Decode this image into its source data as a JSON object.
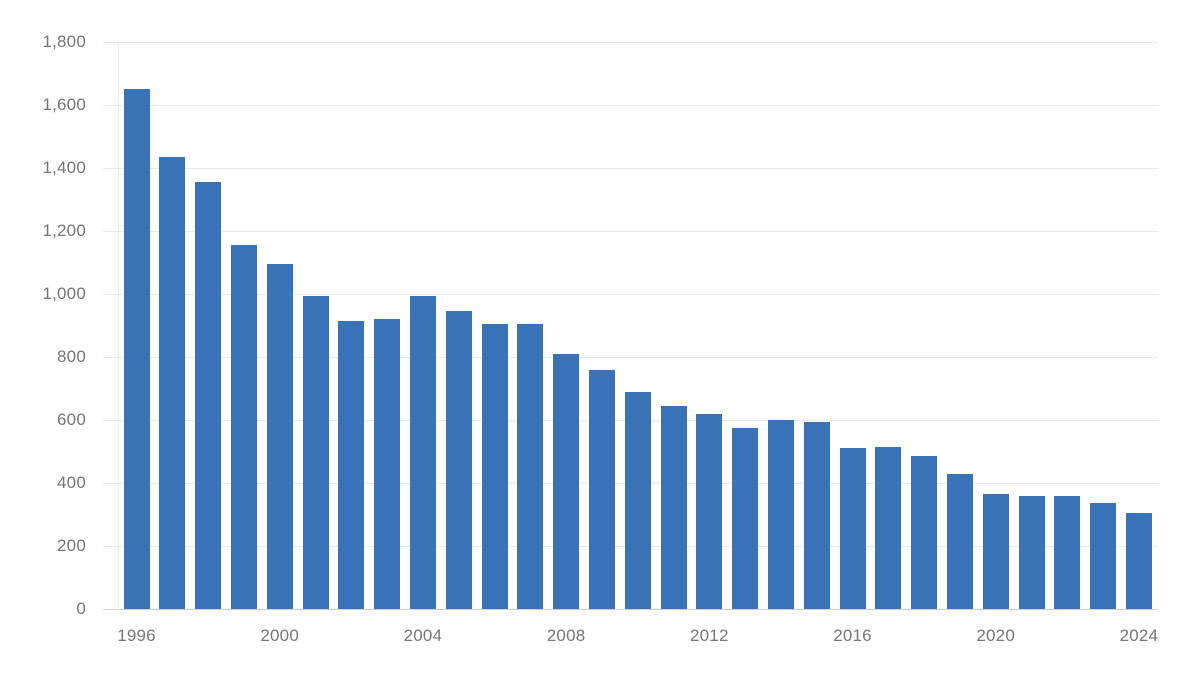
{
  "chart_data": {
    "type": "bar",
    "title": "",
    "xlabel": "",
    "ylabel": "",
    "categories": [
      1996,
      1997,
      1998,
      1999,
      2000,
      2001,
      2002,
      2003,
      2004,
      2005,
      2006,
      2007,
      2008,
      2009,
      2010,
      2011,
      2012,
      2013,
      2014,
      2015,
      2016,
      2017,
      2018,
      2019,
      2020,
      2021,
      2022,
      2023,
      2024
    ],
    "values": [
      1650,
      1435,
      1355,
      1155,
      1095,
      995,
      915,
      920,
      995,
      945,
      905,
      905,
      810,
      760,
      690,
      645,
      620,
      575,
      600,
      595,
      510,
      515,
      485,
      430,
      365,
      360,
      360,
      335,
      305
    ],
    "ylim": [
      0,
      1800
    ],
    "y_tick_interval": 200,
    "y_tick_labels": [
      "1,800",
      "1,600",
      "1,400",
      "1,200",
      "1,000",
      "800",
      "600",
      "400",
      "200",
      "0"
    ],
    "x_tick_years": [
      1996,
      2000,
      2004,
      2008,
      2012,
      2016,
      2020,
      2024
    ],
    "x_tick_labels": [
      "1996",
      "2000",
      "2004",
      "2008",
      "2012",
      "2016",
      "2020",
      "2024"
    ],
    "legend_position": "none",
    "grid": "horizontal",
    "bar_color": "#3a72b8",
    "background_color": "#ffffff",
    "tick_text_color": "#757575",
    "gridline_color": "#e9e9e9",
    "zero_axis_color": "#cfcfcf"
  }
}
